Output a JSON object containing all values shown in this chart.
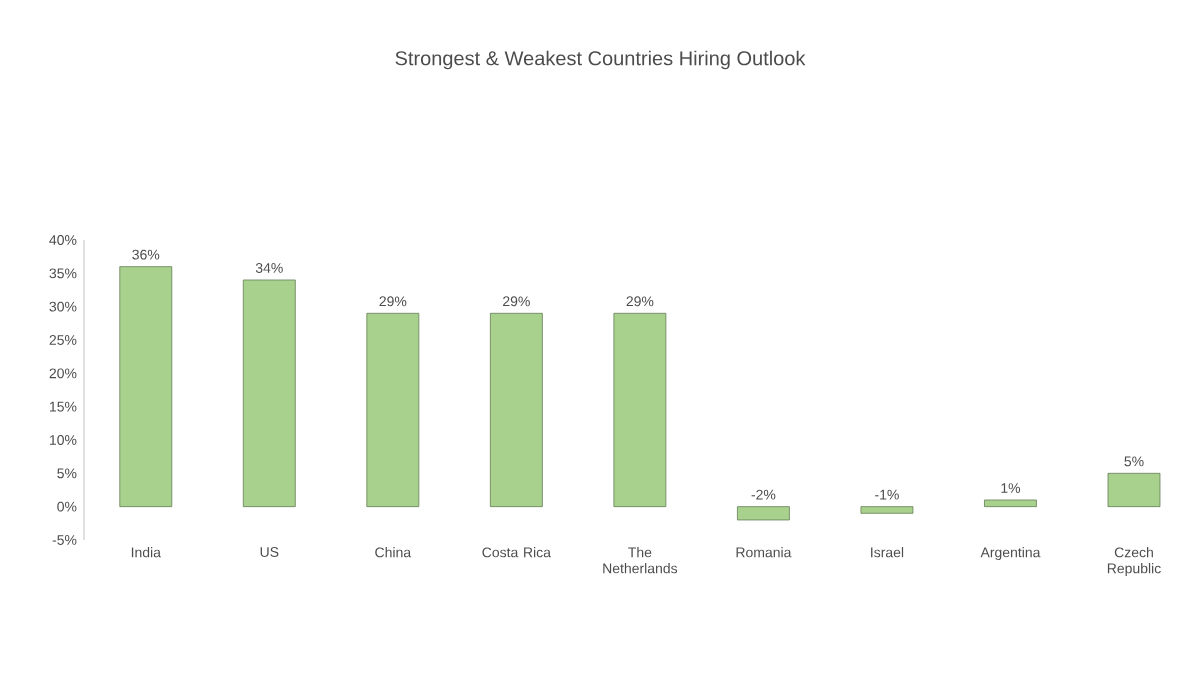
{
  "chart_data": {
    "type": "bar",
    "title": "Strongest & Weakest Countries Hiring Outlook",
    "categories": [
      "India",
      "US",
      "China",
      "Costa Rica",
      "The Netherlands",
      "Romania",
      "Israel",
      "Argentina",
      "Czech Republic"
    ],
    "values": [
      36,
      34,
      29,
      29,
      29,
      -2,
      -1,
      1,
      5
    ],
    "value_labels": [
      "36%",
      "34%",
      "29%",
      "29%",
      "29%",
      "-2%",
      "-1%",
      "1%",
      "5%"
    ],
    "color": "#a9d18e",
    "ylim": [
      -5,
      40
    ],
    "yticks": [
      {
        "value": -5,
        "label": "-5%"
      },
      {
        "value": 0,
        "label": "0%"
      },
      {
        "value": 5,
        "label": "5%"
      },
      {
        "value": 10,
        "label": "10%"
      },
      {
        "value": 15,
        "label": "15%"
      },
      {
        "value": 20,
        "label": "20%"
      },
      {
        "value": 25,
        "label": "25%"
      },
      {
        "value": 30,
        "label": "30%"
      },
      {
        "value": 35,
        "label": "35%"
      },
      {
        "value": 40,
        "label": "40%"
      }
    ],
    "grid": false
  }
}
